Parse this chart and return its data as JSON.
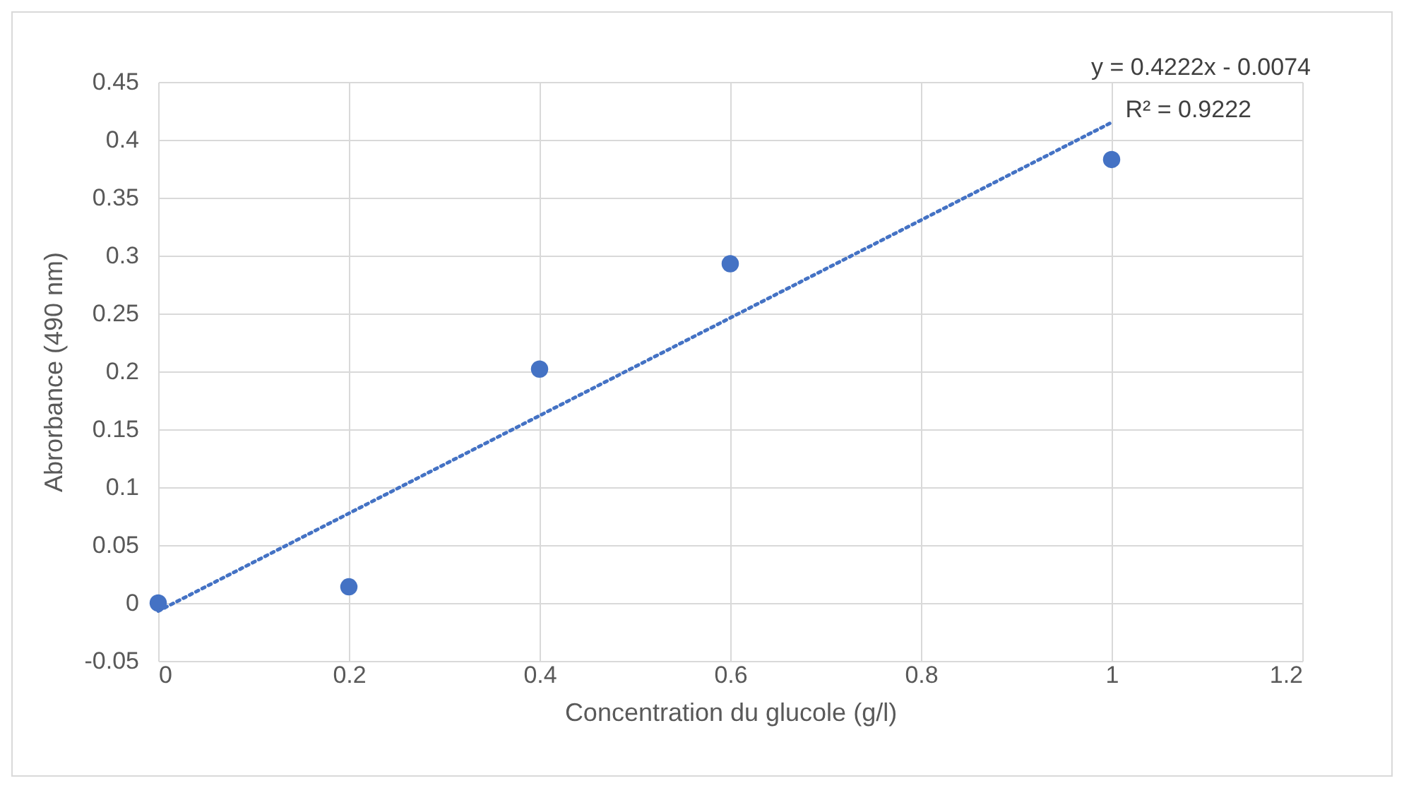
{
  "chart_data": {
    "type": "scatter",
    "xlabel": "Concentration du  glucole (g/l)",
    "ylabel": "Abrorbance (490 nm)",
    "annotations": [
      "y = 0.4222x - 0.0074",
      "R² = 0.9222"
    ],
    "xlim": [
      0,
      1.2
    ],
    "xticks": [
      0,
      0.2,
      0.4,
      0.6,
      0.8,
      1,
      1.2
    ],
    "ylim": [
      -0.05,
      0.45
    ],
    "yticks": [
      -0.05,
      0,
      0.05,
      0.1,
      0.15,
      0.2,
      0.25,
      0.3,
      0.35,
      0.4,
      0.45
    ],
    "grid": true,
    "series": [
      {
        "marker": "circle",
        "color": "#4472c4",
        "x": [
          0,
          0.2,
          0.4,
          0.6,
          1
        ],
        "values": [
          0,
          0.014,
          0.202,
          0.293,
          0.383
        ]
      },
      {
        "type": "line",
        "color": "#4472c4",
        "line_style": "dotted",
        "x": [
          0,
          1
        ],
        "values": [
          -0.007,
          0.415
        ]
      }
    ]
  }
}
